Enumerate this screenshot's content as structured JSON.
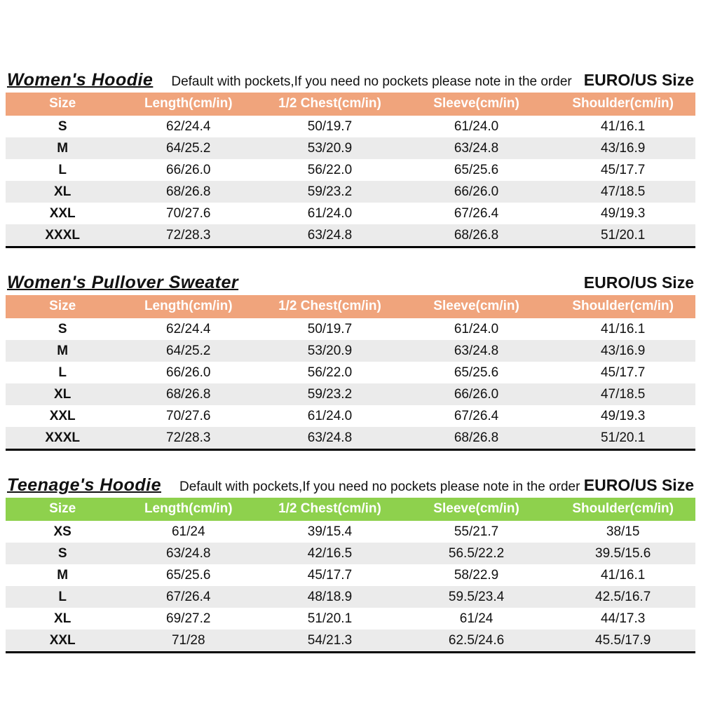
{
  "tables": [
    {
      "title": "Women's Hoodie",
      "note": "Default with pockets,If you need no pockets please note in the order",
      "euro_label": "EURO/US Size",
      "header_color": "#f0a47c",
      "alt_row_color": "#ebebeb",
      "columns": [
        "Size",
        "Length(cm/in)",
        "1/2 Chest(cm/in)",
        "Sleeve(cm/in)",
        "Shoulder(cm/in)"
      ],
      "rows": [
        [
          "S",
          "62/24.4",
          "50/19.7",
          "61/24.0",
          "41/16.1"
        ],
        [
          "M",
          "64/25.2",
          "53/20.9",
          "63/24.8",
          "43/16.9"
        ],
        [
          "L",
          "66/26.0",
          "56/22.0",
          "65/25.6",
          "45/17.7"
        ],
        [
          "XL",
          "68/26.8",
          "59/23.2",
          "66/26.0",
          "47/18.5"
        ],
        [
          "XXL",
          "70/27.6",
          "61/24.0",
          "67/26.4",
          "49/19.3"
        ],
        [
          "XXXL",
          "72/28.3",
          "63/24.8",
          "68/26.8",
          "51/20.1"
        ]
      ]
    },
    {
      "title": "Women's Pullover Sweater",
      "euro_label": "EURO/US Size",
      "header_color": "#f0a47c",
      "alt_row_color": "#ebebeb",
      "columns": [
        "Size",
        "Length(cm/in)",
        "1/2 Chest(cm/in)",
        "Sleeve(cm/in)",
        "Shoulder(cm/in)"
      ],
      "rows": [
        [
          "S",
          "62/24.4",
          "50/19.7",
          "61/24.0",
          "41/16.1"
        ],
        [
          "M",
          "64/25.2",
          "53/20.9",
          "63/24.8",
          "43/16.9"
        ],
        [
          "L",
          "66/26.0",
          "56/22.0",
          "65/25.6",
          "45/17.7"
        ],
        [
          "XL",
          "68/26.8",
          "59/23.2",
          "66/26.0",
          "47/18.5"
        ],
        [
          "XXL",
          "70/27.6",
          "61/24.0",
          "67/26.4",
          "49/19.3"
        ],
        [
          "XXXL",
          "72/28.3",
          "63/24.8",
          "68/26.8",
          "51/20.1"
        ]
      ]
    },
    {
      "title": "Teenage's Hoodie",
      "note": "Default with pockets,If you need no pockets please note in the order",
      "euro_label": "EURO/US Size",
      "header_color": "#8ed14d",
      "alt_row_color": "#ebebeb",
      "columns": [
        "Size",
        "Length(cm/in)",
        "1/2 Chest(cm/in)",
        "Sleeve(cm/in)",
        "Shoulder(cm/in)"
      ],
      "rows": [
        [
          "XS",
          "61/24",
          "39/15.4",
          "55/21.7",
          "38/15"
        ],
        [
          "S",
          "63/24.8",
          "42/16.5",
          "56.5/22.2",
          "39.5/15.6"
        ],
        [
          "M",
          "65/25.6",
          "45/17.7",
          "58/22.9",
          "41/16.1"
        ],
        [
          "L",
          "67/26.4",
          "48/18.9",
          "59.5/23.4",
          "42.5/16.7"
        ],
        [
          "XL",
          "69/27.2",
          "51/20.1",
          "61/24",
          "44/17.3"
        ],
        [
          "XXL",
          "71/28",
          "54/21.3",
          "62.5/24.6",
          "45.5/17.9"
        ]
      ]
    }
  ]
}
